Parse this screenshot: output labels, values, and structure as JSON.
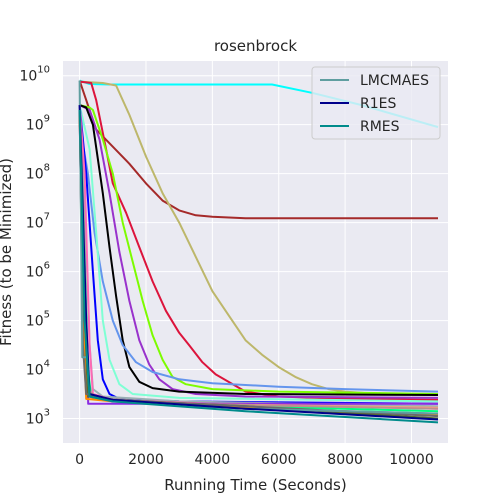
{
  "chart_data": {
    "type": "line",
    "title": "rosenbrock",
    "xlabel": "Running Time (Seconds)",
    "ylabel": "Fitness (to be Minimized)",
    "yscale": "log",
    "xlim": [
      -500,
      11100
    ],
    "ylim_exponent": [
      2.5,
      10.3
    ],
    "x_ticks": [
      {
        "value": 0,
        "label": "0"
      },
      {
        "value": 2000,
        "label": "2000"
      },
      {
        "value": 4000,
        "label": "4000"
      },
      {
        "value": 6000,
        "label": "6000"
      },
      {
        "value": 8000,
        "label": "8000"
      },
      {
        "value": 10000,
        "label": "10000"
      }
    ],
    "y_ticks": [
      {
        "exp": 3,
        "base": "10",
        "power": "3"
      },
      {
        "exp": 4,
        "base": "10",
        "power": "4"
      },
      {
        "exp": 5,
        "base": "10",
        "power": "5"
      },
      {
        "exp": 6,
        "base": "10",
        "power": "6"
      },
      {
        "exp": 7,
        "base": "10",
        "power": "7"
      },
      {
        "exp": 8,
        "base": "10",
        "power": "8"
      },
      {
        "exp": 9,
        "base": "10",
        "power": "9"
      },
      {
        "exp": 10,
        "base": "10",
        "power": "10"
      }
    ],
    "grid": true,
    "legend_position": "top-right",
    "legend": [
      {
        "name": "LMCMAES",
        "color": "#5f9ea0"
      },
      {
        "name": "R1ES",
        "color": "#00008b"
      },
      {
        "name": "RMES",
        "color": "#008b8b"
      }
    ],
    "series": [
      {
        "color": "#00ffff",
        "points": [
          [
            0,
            9.9
          ],
          [
            300,
            9.83
          ],
          [
            900,
            9.82
          ],
          [
            5800,
            9.82
          ],
          [
            7000,
            9.65
          ],
          [
            8500,
            9.4
          ],
          [
            10800,
            8.95
          ]
        ]
      },
      {
        "color": "#a52a2a",
        "points": [
          [
            0,
            9.9
          ],
          [
            250,
            9.4
          ],
          [
            500,
            8.9
          ],
          [
            1000,
            8.55
          ],
          [
            1500,
            8.2
          ],
          [
            2000,
            7.8
          ],
          [
            2500,
            7.45
          ],
          [
            3000,
            7.25
          ],
          [
            3500,
            7.15
          ],
          [
            4000,
            7.12
          ],
          [
            5000,
            7.09
          ],
          [
            7000,
            7.09
          ],
          [
            10800,
            7.09
          ]
        ]
      },
      {
        "color": "#bdb76b",
        "points": [
          [
            0,
            9.88
          ],
          [
            700,
            9.85
          ],
          [
            1100,
            9.8
          ],
          [
            1500,
            9.2
          ],
          [
            2000,
            8.35
          ],
          [
            2500,
            7.6
          ],
          [
            3000,
            7.0
          ],
          [
            3500,
            6.3
          ],
          [
            4000,
            5.6
          ],
          [
            4500,
            5.1
          ],
          [
            5000,
            4.6
          ],
          [
            5500,
            4.3
          ],
          [
            6000,
            4.05
          ],
          [
            6500,
            3.85
          ],
          [
            7000,
            3.7
          ],
          [
            7500,
            3.6
          ],
          [
            8000,
            3.55
          ],
          [
            9000,
            3.5
          ],
          [
            10800,
            3.5
          ]
        ]
      },
      {
        "color": "#dc143c",
        "points": [
          [
            0,
            9.88
          ],
          [
            350,
            9.85
          ],
          [
            500,
            9.5
          ],
          [
            800,
            8.5
          ],
          [
            1000,
            7.8
          ],
          [
            1400,
            7.2
          ],
          [
            1800,
            6.5
          ],
          [
            2200,
            5.8
          ],
          [
            2600,
            5.2
          ],
          [
            3000,
            4.75
          ],
          [
            3300,
            4.5
          ],
          [
            3700,
            4.15
          ],
          [
            4100,
            3.9
          ],
          [
            5000,
            3.55
          ],
          [
            6000,
            3.45
          ],
          [
            8000,
            3.4
          ],
          [
            10800,
            3.38
          ]
        ]
      },
      {
        "color": "#7cfc00",
        "points": [
          [
            0,
            9.4
          ],
          [
            300,
            9.35
          ],
          [
            400,
            9.3
          ],
          [
            700,
            8.7
          ],
          [
            1000,
            8.0
          ],
          [
            1300,
            7.0
          ],
          [
            1600,
            6.2
          ],
          [
            1900,
            5.4
          ],
          [
            2200,
            4.7
          ],
          [
            2500,
            4.2
          ],
          [
            2800,
            3.85
          ],
          [
            3200,
            3.7
          ],
          [
            4000,
            3.6
          ],
          [
            6000,
            3.55
          ],
          [
            10800,
            3.5
          ]
        ]
      },
      {
        "color": "#9932cc",
        "points": [
          [
            0,
            9.4
          ],
          [
            300,
            9.3
          ],
          [
            600,
            8.7
          ],
          [
            900,
            7.6
          ],
          [
            1200,
            6.4
          ],
          [
            1500,
            5.4
          ],
          [
            1800,
            4.6
          ],
          [
            2100,
            4.1
          ],
          [
            2400,
            3.8
          ],
          [
            2800,
            3.6
          ],
          [
            3500,
            3.5
          ],
          [
            5000,
            3.45
          ],
          [
            10800,
            3.42
          ]
        ]
      },
      {
        "color": "#000000",
        "points": [
          [
            0,
            9.4
          ],
          [
            200,
            9.35
          ],
          [
            400,
            9.0
          ],
          [
            700,
            7.6
          ],
          [
            900,
            6.5
          ],
          [
            1100,
            5.5
          ],
          [
            1300,
            4.6
          ],
          [
            1500,
            4.05
          ],
          [
            1800,
            3.75
          ],
          [
            2200,
            3.62
          ],
          [
            3000,
            3.55
          ],
          [
            5000,
            3.5
          ],
          [
            10800,
            3.48
          ]
        ]
      },
      {
        "color": "#6495ed",
        "points": [
          [
            0,
            9.0
          ],
          [
            250,
            8.0
          ],
          [
            450,
            6.8
          ],
          [
            700,
            5.8
          ],
          [
            1000,
            5.0
          ],
          [
            1300,
            4.5
          ],
          [
            1700,
            4.15
          ],
          [
            2200,
            3.95
          ],
          [
            3000,
            3.8
          ],
          [
            4000,
            3.72
          ],
          [
            6000,
            3.65
          ],
          [
            8000,
            3.6
          ],
          [
            10800,
            3.55
          ]
        ]
      },
      {
        "color": "#7fffd4",
        "points": [
          [
            0,
            9.4
          ],
          [
            300,
            8.5
          ],
          [
            500,
            6.8
          ],
          [
            700,
            5.0
          ],
          [
            900,
            4.2
          ],
          [
            1200,
            3.7
          ],
          [
            1600,
            3.5
          ],
          [
            3000,
            3.42
          ],
          [
            10800,
            3.35
          ]
        ]
      },
      {
        "color": "#0000ff",
        "points": [
          [
            0,
            9.4
          ],
          [
            200,
            8.0
          ],
          [
            400,
            6.0
          ],
          [
            550,
            4.6
          ],
          [
            700,
            3.8
          ],
          [
            900,
            3.5
          ],
          [
            1200,
            3.4
          ],
          [
            3000,
            3.35
          ],
          [
            10800,
            3.3
          ]
        ]
      },
      {
        "color": "#9ab0b5",
        "points": [
          [
            0,
            9.4
          ],
          [
            150,
            7.5
          ],
          [
            300,
            4.5
          ],
          [
            400,
            3.6
          ],
          [
            700,
            3.45
          ],
          [
            3000,
            3.35
          ],
          [
            10800,
            3.25
          ]
        ]
      },
      {
        "color": "#ff69b4",
        "points": [
          [
            0,
            9.4
          ],
          [
            150,
            8.0
          ],
          [
            300,
            4.5
          ],
          [
            400,
            3.5
          ],
          [
            1000,
            3.38
          ],
          [
            4000,
            3.3
          ],
          [
            10800,
            3.2
          ]
        ]
      },
      {
        "color": "#00ff7f",
        "points": [
          [
            0,
            9.3
          ],
          [
            120,
            7.0
          ],
          [
            250,
            4.0
          ],
          [
            350,
            3.45
          ],
          [
            1000,
            3.35
          ],
          [
            5000,
            3.25
          ],
          [
            10800,
            3.15
          ]
        ]
      },
      {
        "color": "#8a2be2",
        "points": [
          [
            0,
            9.3
          ],
          [
            50,
            7.0
          ],
          [
            120,
            4.25
          ],
          [
            220,
            4.25
          ],
          [
            260,
            3.3
          ],
          [
            2000,
            3.3
          ],
          [
            10800,
            3.3
          ]
        ]
      },
      {
        "color": "#ffa07a",
        "points": [
          [
            0,
            9.3
          ],
          [
            100,
            6.0
          ],
          [
            250,
            3.5
          ],
          [
            400,
            3.4
          ],
          [
            3000,
            3.3
          ],
          [
            10800,
            3.22
          ]
        ]
      },
      {
        "color": "#bc8f8f",
        "points": [
          [
            0,
            9.3
          ],
          [
            120,
            7.0
          ],
          [
            250,
            3.6
          ],
          [
            500,
            3.42
          ],
          [
            3000,
            3.3
          ],
          [
            10800,
            3.2
          ]
        ]
      },
      {
        "color": "#4682b4",
        "points": [
          [
            0,
            9.3
          ],
          [
            100,
            5.0
          ],
          [
            200,
            3.5
          ],
          [
            700,
            3.4
          ],
          [
            5000,
            3.2
          ],
          [
            10800,
            3.1
          ]
        ]
      },
      {
        "color": "#556b2f",
        "points": [
          [
            0,
            9.3
          ],
          [
            100,
            6.0
          ],
          [
            250,
            3.45
          ],
          [
            1000,
            3.38
          ],
          [
            5000,
            3.25
          ],
          [
            10800,
            3.0
          ]
        ]
      },
      {
        "color": "#ff8c00",
        "points": [
          [
            0,
            9.3
          ],
          [
            100,
            5.0
          ],
          [
            200,
            3.4
          ],
          [
            1000,
            3.35
          ],
          [
            5000,
            3.22
          ],
          [
            10800,
            3.08
          ]
        ]
      },
      {
        "color": "#696969",
        "points": [
          [
            0,
            9.3
          ],
          [
            100,
            4.5
          ],
          [
            200,
            3.5
          ],
          [
            1000,
            3.38
          ],
          [
            5000,
            3.25
          ],
          [
            10800,
            3.05
          ]
        ]
      },
      {
        "color": "#5f9ea0",
        "points": [
          [
            0,
            9.9
          ],
          [
            80,
            4.25
          ],
          [
            220,
            4.25
          ],
          [
            300,
            3.45
          ],
          [
            1000,
            3.35
          ],
          [
            5000,
            3.2
          ],
          [
            10800,
            3.1
          ]
        ]
      },
      {
        "color": "#00008b",
        "points": [
          [
            0,
            9.4
          ],
          [
            200,
            5.0
          ],
          [
            300,
            3.5
          ],
          [
            1000,
            3.38
          ],
          [
            5000,
            3.2
          ],
          [
            10800,
            2.98
          ]
        ]
      },
      {
        "color": "#008b8b",
        "points": [
          [
            0,
            9.3
          ],
          [
            150,
            5.0
          ],
          [
            300,
            3.45
          ],
          [
            1000,
            3.35
          ],
          [
            5000,
            3.15
          ],
          [
            10800,
            2.92
          ]
        ]
      }
    ]
  }
}
